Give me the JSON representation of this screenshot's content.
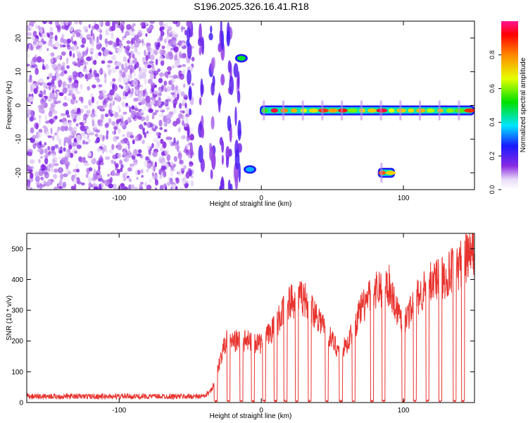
{
  "title": "S196.2025.326.16.41.R18",
  "chart_data": [
    {
      "type": "heatmap",
      "xlabel": "Height of straight line (km)",
      "ylabel": "Frequency (Hz)",
      "xlim": [
        -165,
        150
      ],
      "ylim": [
        -25,
        25
      ],
      "x_ticks": [
        -100,
        0,
        100
      ],
      "y_ticks": [
        -20,
        -10,
        0,
        10,
        20
      ],
      "colorbar": {
        "label": "Normalized spectral amplitude",
        "ticks": [
          "0.0",
          "0.2",
          "0.4",
          "0.6",
          "0.8"
        ],
        "range": [
          0,
          1
        ]
      },
      "features": [
        {
          "x_range": [
            -165,
            -48
          ],
          "description": "scattered purple speckle"
        },
        {
          "x": -14,
          "freq": 14,
          "amplitude": 0.5
        },
        {
          "x": -8,
          "freq": -19,
          "amplitude": 0.35
        },
        {
          "x_range": [
            -1,
            150
          ],
          "freq": -1.5,
          "amplitude": 0.9
        },
        {
          "x_range": [
            82,
            94
          ],
          "freq": -20,
          "amplitude": 0.95
        }
      ]
    },
    {
      "type": "line",
      "xlabel": "Height of straight line (km)",
      "ylabel": "SNR (10 * v/v)",
      "xlim": [
        -165,
        150
      ],
      "ylim": [
        0,
        550
      ],
      "x_ticks": [
        -100,
        0,
        100
      ],
      "y_ticks": [
        0,
        100,
        200,
        300,
        400,
        500
      ],
      "color": "#e8332e",
      "trend": {
        "x": [
          -165,
          -40,
          -35,
          -25,
          -10,
          0,
          10,
          20,
          30,
          40,
          50,
          55,
          60,
          70,
          80,
          90,
          95,
          100,
          110,
          120,
          130,
          140,
          150
        ],
        "y": [
          20,
          20,
          40,
          200,
          200,
          190,
          250,
          330,
          340,
          280,
          200,
          170,
          185,
          300,
          370,
          380,
          310,
          260,
          340,
          400,
          410,
          450,
          490
        ]
      },
      "dropouts_x": [
        -32,
        -23,
        -14,
        -6,
        2,
        10,
        17,
        25,
        34,
        46,
        56,
        65,
        78,
        86,
        100,
        108,
        117,
        126,
        136,
        142
      ]
    }
  ]
}
